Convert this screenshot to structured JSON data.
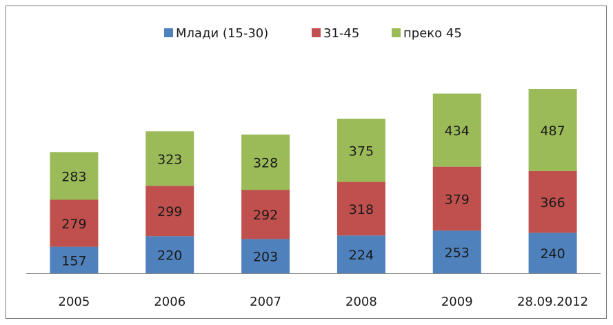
{
  "chart_data": {
    "type": "stacked_bar",
    "categories": [
      "2005",
      "2006",
      "2007",
      "2008",
      "2009",
      "28.09.2012"
    ],
    "series": [
      {
        "name": "Млади (15-30)",
        "color": "#4f81bd",
        "values": [
          157,
          220,
          203,
          224,
          253,
          240
        ]
      },
      {
        "name": "31-45",
        "color": "#c0504d",
        "values": [
          279,
          299,
          292,
          318,
          379,
          366
        ]
      },
      {
        "name": "преко 45",
        "color": "#9bbb59",
        "values": [
          283,
          323,
          328,
          375,
          434,
          487
        ]
      }
    ],
    "legend": "top"
  }
}
